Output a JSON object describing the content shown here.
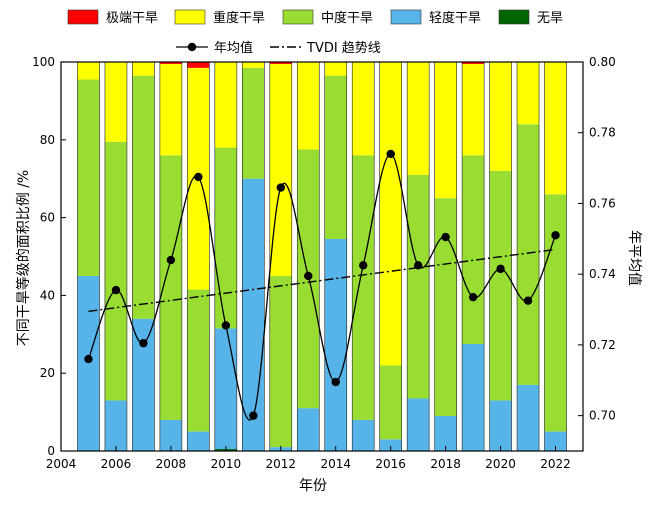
{
  "chart_data": {
    "type": "bar",
    "subtype": "stacked-bar-with-line",
    "x": [
      2005,
      2006,
      2007,
      2008,
      2009,
      2010,
      2011,
      2012,
      2013,
      2014,
      2015,
      2016,
      2017,
      2018,
      2019,
      2020,
      2021,
      2022
    ],
    "xlabel": "年份",
    "ylabel": "不同干旱等级的面积比例 /%",
    "y2label": "年平均值",
    "xlim": [
      2004,
      2023
    ],
    "ylim": [
      0,
      100
    ],
    "y2lim": [
      0.69,
      0.8
    ],
    "xticks": [
      "2004",
      "2006",
      "2008",
      "2010",
      "2012",
      "2014",
      "2016",
      "2018",
      "2020",
      "2022"
    ],
    "yticks": [
      "0",
      "20",
      "40",
      "60",
      "80",
      "100"
    ],
    "y2ticks": [
      "0.70",
      "0.72",
      "0.74",
      "0.76",
      "0.78",
      "0.80"
    ],
    "grid": false,
    "legend_position": "top",
    "series": [
      {
        "name": "无旱",
        "color": "#006400",
        "values": [
          0,
          0,
          0,
          0,
          0,
          0.5,
          0,
          0,
          0,
          0,
          0,
          0,
          0,
          0,
          0,
          0,
          0,
          0
        ]
      },
      {
        "name": "轻度干旱",
        "color": "#56B4E9",
        "values": [
          45,
          13,
          34,
          8,
          5,
          31,
          70,
          1,
          11,
          54.5,
          8,
          3,
          13.5,
          9,
          27.5,
          13,
          17,
          5
        ]
      },
      {
        "name": "中度干旱",
        "color": "#99DD33",
        "values": [
          50.5,
          66.5,
          62.5,
          68,
          36.5,
          46.5,
          28.5,
          44,
          66.5,
          42,
          68,
          19,
          57.5,
          56,
          48.5,
          59,
          67,
          61
        ]
      },
      {
        "name": "重度干旱",
        "color": "#FFFF00",
        "values": [
          4.5,
          20.5,
          3.5,
          23.5,
          57,
          22,
          1.5,
          54.5,
          22.5,
          3.5,
          24,
          78,
          29,
          35,
          23.5,
          28,
          16,
          34
        ]
      },
      {
        "name": "极端干旱",
        "color": "#FF0000",
        "values": [
          0,
          0,
          0,
          0.5,
          1.5,
          0,
          0,
          0.5,
          0,
          0,
          0,
          0,
          0,
          0,
          0.5,
          0,
          0,
          0
        ]
      }
    ],
    "line_series": {
      "name": "年均值",
      "axis": "right",
      "color": "#000000",
      "values": [
        0.716,
        0.7355,
        0.7205,
        0.744,
        0.7675,
        0.7255,
        0.7,
        0.7645,
        0.7395,
        0.7095,
        0.7425,
        0.774,
        0.7425,
        0.7505,
        0.7335,
        0.7415,
        0.7325,
        0.751
      ]
    },
    "trend_series": {
      "name": "TVDI 趋势线",
      "axis": "right",
      "color": "#000000",
      "x": [
        2005,
        2022
      ],
      "values": [
        0.7295,
        0.747
      ]
    },
    "legend_order": [
      "极端干旱",
      "重度干旱",
      "中度干旱",
      "轻度干旱",
      "无旱",
      "年均值",
      "TVDI 趋势线"
    ]
  }
}
